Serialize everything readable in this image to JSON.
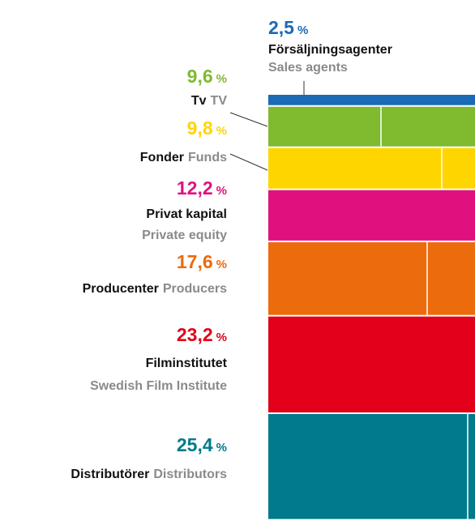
{
  "chart_data": {
    "type": "stacked-column",
    "unit": "%",
    "categories": [
      "Försäljningsagenter",
      "Tv",
      "Fonder",
      "Privat kapital",
      "Producenter",
      "Filminstitutet",
      "Distributörer"
    ],
    "categories_en": [
      "Sales agents",
      "TV",
      "Funds",
      "Private equity",
      "Producers",
      "Swedish Film Institute",
      "Distributors"
    ],
    "values": [
      2.5,
      9.6,
      9.8,
      12.2,
      17.6,
      23.2,
      25.4
    ],
    "value_labels": [
      "2,5",
      "9,6",
      "9,8",
      "12,2",
      "17,6",
      "23,2",
      "25,4"
    ],
    "colors": [
      "#1a6ab5",
      "#7fba2f",
      "#ffd500",
      "#e0117f",
      "#ec6b0c",
      "#e2001a",
      "#007a8c"
    ]
  }
}
